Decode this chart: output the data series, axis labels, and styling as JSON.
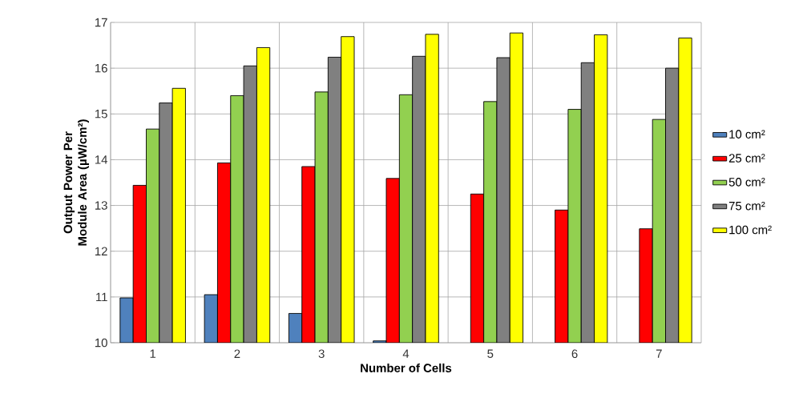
{
  "chart_data": {
    "type": "bar",
    "xlabel": "Number of Cells",
    "ylabel": "Output Power Per Module Area (µW/cm²)",
    "categories": [
      "1",
      "2",
      "3",
      "4",
      "5",
      "6",
      "7"
    ],
    "series": [
      {
        "name": "10 cm²",
        "color": "#4f81bd",
        "values": [
          10.98,
          11.05,
          10.64,
          10.04,
          null,
          null,
          null
        ]
      },
      {
        "name": "25 cm²",
        "color": "#ff0000",
        "values": [
          13.44,
          13.93,
          13.85,
          13.59,
          13.25,
          12.9,
          12.49
        ]
      },
      {
        "name": "50 cm²",
        "color": "#92d050",
        "values": [
          14.67,
          15.4,
          15.48,
          15.42,
          15.27,
          15.1,
          14.88
        ]
      },
      {
        "name": "75 cm²",
        "color": "#808080",
        "values": [
          15.24,
          16.05,
          16.24,
          16.26,
          16.23,
          16.12,
          16.0
        ]
      },
      {
        "name": "100 cm²",
        "color": "#ffff00",
        "values": [
          15.56,
          16.45,
          16.69,
          16.74,
          16.77,
          16.73,
          16.66
        ]
      }
    ],
    "ylim": [
      10,
      17
    ],
    "yticks": [
      10,
      11,
      12,
      13,
      14,
      15,
      16,
      17
    ],
    "grid": true,
    "legend": "right"
  }
}
